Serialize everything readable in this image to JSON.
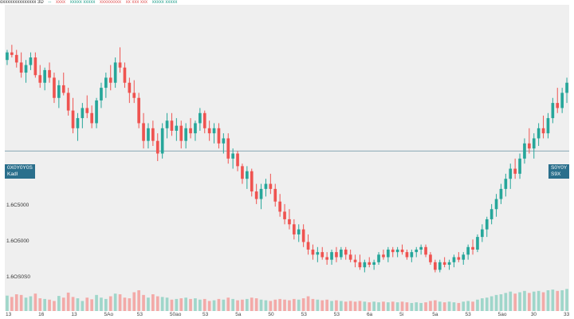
{
  "header": {
    "symbol": "oxxxxxxxxxxxxxx 3D",
    "fields": [
      {
        "text": "--",
        "color": "#1f9e8a"
      },
      {
        "text": "xxxx",
        "color": "#e05555"
      },
      {
        "text": "xxxxx xxxxx",
        "color": "#1f9e8a"
      },
      {
        "text": "xxxxxxxxx",
        "color": "#e05555"
      },
      {
        "text": "xx xxx xxx",
        "color": "#e05555"
      },
      {
        "text": "xxxxx xxxxx",
        "color": "#1f9e8a"
      }
    ]
  },
  "price_markers": {
    "left": {
      "line1": "0X0Y0Y0S",
      "line2": "Kadl"
    },
    "right": {
      "line1": "S0Y0Y",
      "line2": "S9X"
    }
  },
  "y_labels": [
    "1.6C5000",
    "1.6O5000",
    "1.6OS0S0"
  ],
  "x_labels": [
    "13",
    "16",
    "13",
    "5Ao",
    "53",
    "50ao",
    "53",
    "5a",
    "50",
    "53",
    "53",
    "6a",
    "5i",
    "5a",
    "53",
    "5ao",
    "30",
    "33"
  ],
  "colors": {
    "up": "#26a69a",
    "down": "#ef5350",
    "vol_up": "#9fd6ca",
    "vol_down": "#f3aaa8",
    "marker": "#2a6f8c",
    "plot_bg": "#efefef"
  },
  "chart_data": {
    "type": "candlestick",
    "price_ylim": [
      0,
      100
    ],
    "volume_ylim": [
      0,
      100
    ],
    "marker_level": 51,
    "candles": [
      [
        87,
        91,
        85,
        90,
        46
      ],
      [
        90,
        93,
        88,
        89,
        42
      ],
      [
        89,
        91,
        84,
        86,
        50
      ],
      [
        86,
        90,
        80,
        82,
        48
      ],
      [
        82,
        87,
        78,
        85,
        40
      ],
      [
        85,
        90,
        83,
        88,
        44
      ],
      [
        88,
        90,
        80,
        81,
        52
      ],
      [
        81,
        85,
        76,
        78,
        38
      ],
      [
        78,
        84,
        75,
        83,
        36
      ],
      [
        83,
        86,
        78,
        80,
        34
      ],
      [
        80,
        82,
        70,
        72,
        30
      ],
      [
        72,
        79,
        68,
        77,
        45
      ],
      [
        77,
        82,
        73,
        74,
        40
      ],
      [
        74,
        76,
        65,
        67,
        55
      ],
      [
        67,
        72,
        58,
        60,
        42
      ],
      [
        60,
        66,
        55,
        64,
        38
      ],
      [
        64,
        70,
        60,
        68,
        30
      ],
      [
        68,
        73,
        64,
        66,
        40
      ],
      [
        66,
        69,
        60,
        62,
        35
      ],
      [
        62,
        72,
        60,
        71,
        48
      ],
      [
        71,
        78,
        68,
        76,
        40
      ],
      [
        76,
        82,
        72,
        80,
        36
      ],
      [
        80,
        85,
        75,
        78,
        44
      ],
      [
        78,
        88,
        76,
        86,
        52
      ],
      [
        86,
        92,
        82,
        84,
        50
      ],
      [
        84,
        86,
        76,
        78,
        40
      ],
      [
        78,
        80,
        70,
        74,
        38
      ],
      [
        74,
        79,
        70,
        72,
        56
      ],
      [
        72,
        74,
        60,
        62,
        62
      ],
      [
        62,
        66,
        52,
        55,
        48
      ],
      [
        55,
        62,
        52,
        60,
        40
      ],
      [
        60,
        63,
        53,
        55,
        50
      ],
      [
        55,
        58,
        47,
        50,
        44
      ],
      [
        50,
        62,
        48,
        60,
        42
      ],
      [
        60,
        66,
        56,
        63,
        40
      ],
      [
        63,
        66,
        57,
        59,
        34
      ],
      [
        59,
        64,
        55,
        61,
        36
      ],
      [
        61,
        63,
        52,
        55,
        38
      ],
      [
        55,
        62,
        52,
        60,
        40
      ],
      [
        60,
        64,
        56,
        58,
        36
      ],
      [
        58,
        63,
        55,
        62,
        38
      ],
      [
        62,
        68,
        59,
        66,
        34
      ],
      [
        66,
        67,
        58,
        60,
        36
      ],
      [
        60,
        63,
        55,
        58,
        30
      ],
      [
        58,
        62,
        54,
        60,
        32
      ],
      [
        60,
        62,
        52,
        54,
        36
      ],
      [
        54,
        58,
        50,
        56,
        34
      ],
      [
        56,
        58,
        46,
        48,
        40
      ],
      [
        48,
        52,
        44,
        50,
        36
      ],
      [
        50,
        51,
        43,
        45,
        32
      ],
      [
        45,
        46,
        38,
        40,
        34
      ],
      [
        40,
        45,
        36,
        43,
        36
      ],
      [
        43,
        44,
        33,
        35,
        40
      ],
      [
        35,
        38,
        30,
        32,
        38
      ],
      [
        32,
        38,
        28,
        36,
        34
      ],
      [
        36,
        40,
        33,
        38,
        32
      ],
      [
        38,
        42,
        34,
        36,
        30
      ],
      [
        36,
        38,
        29,
        31,
        34
      ],
      [
        31,
        34,
        25,
        27,
        36
      ],
      [
        27,
        30,
        22,
        24,
        34
      ],
      [
        24,
        28,
        20,
        22,
        32
      ],
      [
        22,
        24,
        16,
        18,
        36
      ],
      [
        18,
        22,
        15,
        20,
        34
      ],
      [
        20,
        22,
        13,
        15,
        38
      ],
      [
        15,
        18,
        10,
        12,
        44
      ],
      [
        12,
        14,
        8,
        10,
        36
      ],
      [
        10,
        13,
        7,
        11,
        34
      ],
      [
        11,
        13,
        8,
        9,
        32
      ],
      [
        9,
        11,
        6,
        8,
        34
      ],
      [
        8,
        12,
        6,
        11,
        30
      ],
      [
        11,
        13,
        7,
        9,
        32
      ],
      [
        9,
        13,
        8,
        12,
        30
      ],
      [
        12,
        13,
        8,
        10,
        28
      ],
      [
        10,
        12,
        7,
        8,
        30
      ],
      [
        8,
        10,
        5,
        7,
        28
      ],
      [
        7,
        10,
        4,
        5,
        30
      ],
      [
        5,
        8,
        3,
        7,
        28
      ],
      [
        7,
        9,
        5,
        6,
        26
      ],
      [
        6,
        8,
        4,
        7,
        28
      ],
      [
        7,
        11,
        6,
        10,
        26
      ],
      [
        10,
        12,
        8,
        9,
        28
      ],
      [
        9,
        13,
        7,
        12,
        26
      ],
      [
        12,
        13,
        9,
        11,
        28
      ],
      [
        11,
        13,
        9,
        12,
        26
      ],
      [
        12,
        14,
        10,
        11,
        28
      ],
      [
        11,
        12,
        8,
        9,
        26
      ],
      [
        9,
        12,
        7,
        11,
        24
      ],
      [
        11,
        13,
        9,
        12,
        26
      ],
      [
        12,
        14,
        10,
        13,
        24
      ],
      [
        13,
        14,
        9,
        10,
        26
      ],
      [
        10,
        11,
        6,
        7,
        30
      ],
      [
        7,
        8,
        3,
        4,
        32
      ],
      [
        4,
        8,
        3,
        7,
        28
      ],
      [
        7,
        9,
        5,
        6,
        26
      ],
      [
        6,
        8,
        4,
        7,
        28
      ],
      [
        7,
        10,
        5,
        9,
        26
      ],
      [
        9,
        11,
        7,
        8,
        24
      ],
      [
        8,
        11,
        6,
        10,
        28
      ],
      [
        10,
        14,
        8,
        13,
        30
      ],
      [
        13,
        16,
        10,
        12,
        28
      ],
      [
        12,
        18,
        11,
        17,
        34
      ],
      [
        17,
        22,
        15,
        20,
        38
      ],
      [
        20,
        25,
        17,
        24,
        40
      ],
      [
        24,
        30,
        22,
        28,
        44
      ],
      [
        28,
        34,
        25,
        32,
        48
      ],
      [
        32,
        38,
        30,
        36,
        50
      ],
      [
        36,
        42,
        33,
        40,
        54
      ],
      [
        40,
        46,
        36,
        44,
        58
      ],
      [
        44,
        48,
        40,
        42,
        52
      ],
      [
        42,
        50,
        40,
        48,
        56
      ],
      [
        48,
        56,
        46,
        54,
        60
      ],
      [
        54,
        60,
        50,
        52,
        54
      ],
      [
        52,
        58,
        48,
        56,
        58
      ],
      [
        56,
        62,
        53,
        60,
        60
      ],
      [
        60,
        65,
        56,
        58,
        56
      ],
      [
        58,
        66,
        56,
        64,
        62
      ],
      [
        64,
        72,
        62,
        70,
        64
      ],
      [
        70,
        76,
        66,
        68,
        60
      ],
      [
        68,
        76,
        66,
        74,
        62
      ],
      [
        74,
        80,
        70,
        78,
        66
      ]
    ]
  }
}
